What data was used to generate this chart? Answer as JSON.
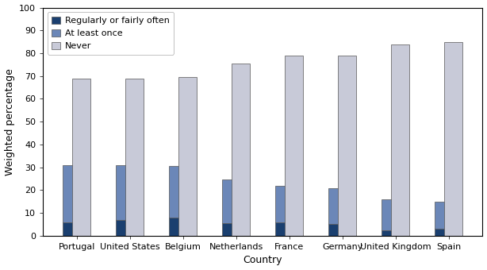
{
  "countries": [
    "Portugal",
    "United States",
    "Belgium",
    "Netherlands",
    "France",
    "Germany",
    "United Kingdom",
    "Spain"
  ],
  "regularly": [
    6,
    7,
    8,
    5.5,
    6,
    5,
    2.5,
    3
  ],
  "at_least_once": [
    25,
    24,
    22.5,
    19,
    16,
    16,
    13.5,
    12
  ],
  "never": [
    69,
    69,
    69.5,
    75.5,
    79,
    79,
    84,
    85
  ],
  "color_regularly": "#1a3f6f",
  "color_at_least": "#6b87b8",
  "color_never": "#c8cad8",
  "bar_edgecolor": "#555555",
  "bar_width": 0.35,
  "ylabel": "Weighted percentage",
  "xlabel": "Country",
  "ylim": [
    0,
    100
  ],
  "yticks": [
    0,
    10,
    20,
    30,
    40,
    50,
    60,
    70,
    80,
    90,
    100
  ],
  "legend_labels": [
    "Regularly or fairly often",
    "At least once",
    "Never"
  ],
  "axis_fontsize": 9,
  "legend_fontsize": 8,
  "tick_fontsize": 8
}
